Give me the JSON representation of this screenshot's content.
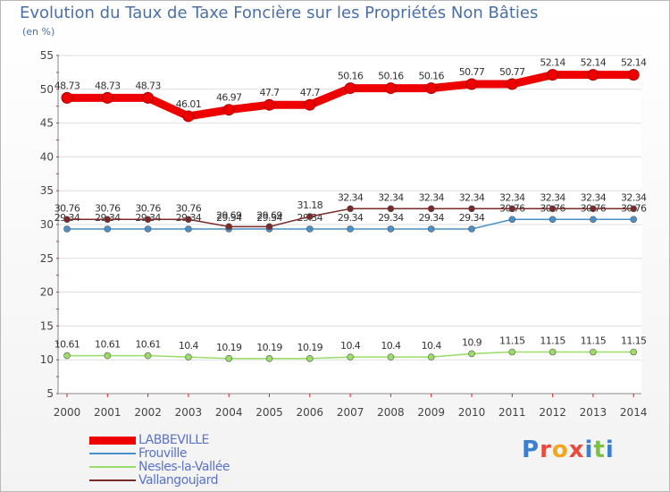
{
  "header": {
    "title": "Evolution du Taux de Taxe Foncière sur les Propriétés Non Bâties",
    "unit": "(en %)"
  },
  "brand": {
    "text": "Proxiti"
  },
  "chart_data": {
    "type": "line",
    "title": "Evolution du Taux de Taxe Foncière sur les Propriétés Non Bâties",
    "ylabel": "(en %)",
    "xlabel": "",
    "ylim": [
      5,
      55
    ],
    "yticks": [
      5,
      10,
      15,
      20,
      25,
      30,
      35,
      40,
      45,
      50,
      55
    ],
    "grid": "horizontal",
    "legend_position": "bottom-left",
    "categories": [
      "2000",
      "2001",
      "2002",
      "2003",
      "2004",
      "2005",
      "2006",
      "2007",
      "2008",
      "2009",
      "2010",
      "2011",
      "2012",
      "2013",
      "2014"
    ],
    "series": [
      {
        "name": "LABBEVILLE",
        "color": "#ee0000",
        "emphasis": "thick",
        "values": [
          48.73,
          48.73,
          48.73,
          46.01,
          46.97,
          47.7,
          47.7,
          50.16,
          50.16,
          50.16,
          50.77,
          50.77,
          52.14,
          52.14,
          52.14
        ],
        "labels": [
          "48.73",
          "48.73",
          "48.73",
          "46.01",
          "46.97",
          "47.7",
          "47.7",
          "50.16",
          "50.16",
          "50.16",
          "50.77",
          "50.77",
          "52.14",
          "52.14",
          "52.14"
        ]
      },
      {
        "name": "Frouville",
        "color": "#4a90c8",
        "emphasis": "thin",
        "values": [
          29.34,
          29.34,
          29.34,
          29.34,
          29.34,
          29.34,
          29.34,
          29.34,
          29.34,
          29.34,
          29.34,
          30.76,
          30.76,
          30.76,
          30.76
        ],
        "labels": [
          "29.34",
          "29.34",
          "29.34",
          "29.34",
          "29.34",
          "29.34",
          "29.34",
          "29.34",
          "29.34",
          "29.34",
          "29.34",
          "30.76",
          "30.76",
          "30.76",
          "30.76"
        ]
      },
      {
        "name": "Nesles-la-Vallée",
        "color": "#99dd66",
        "emphasis": "thin",
        "values": [
          10.61,
          10.61,
          10.61,
          10.4,
          10.19,
          10.19,
          10.19,
          10.4,
          10.4,
          10.4,
          10.9,
          11.15,
          11.15,
          11.15,
          11.15
        ],
        "labels": [
          "10.61",
          "10.61",
          "10.61",
          "10.4",
          "10.19",
          "10.19",
          "10.19",
          "10.4",
          "10.4",
          "10.4",
          "10.9",
          "11.15",
          "11.15",
          "11.15",
          "11.15"
        ]
      },
      {
        "name": "Vallangoujard",
        "color": "#7a2a2a",
        "emphasis": "thin",
        "values": [
          30.76,
          30.76,
          30.76,
          30.76,
          29.69,
          29.69,
          31.18,
          32.34,
          32.34,
          32.34,
          32.34,
          32.34,
          32.34,
          32.34,
          32.34
        ],
        "labels": [
          "30.76",
          "30.76",
          "30.76",
          "30.76",
          "29.69",
          "29.69",
          "31.18",
          "32.34",
          "32.34",
          "32.34",
          "32.34",
          "32.34",
          "32.34",
          "32.34",
          "32.34"
        ]
      }
    ]
  }
}
